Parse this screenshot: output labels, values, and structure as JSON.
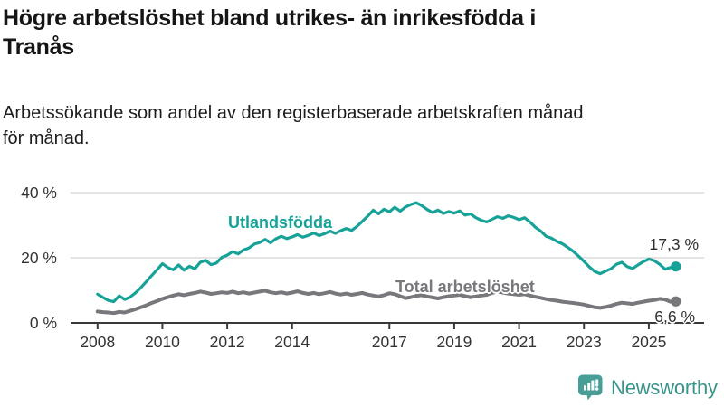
{
  "header": {
    "title_line1": "Högre arbetslöshet bland utrikes- än inrikesfödda i",
    "title_line2": "Tranås",
    "subtitle_line1": "Arbetssökande som andel av den registerbaserade arbetskraften månad",
    "subtitle_line2": "för månad."
  },
  "chart_data": {
    "type": "line",
    "title": "Högre arbetslöshet bland utrikes- än inrikesfödda i Tranås",
    "subtitle": "Arbetssökande som andel av den registerbaserade arbetskraften månad för månad.",
    "unit": "%",
    "grid": "horizontal",
    "legend_position": "inline-labels",
    "x0": 2008.0,
    "dx_years": 0.166667,
    "xlim": [
      2007.2,
      2026.7
    ],
    "ylim": [
      0,
      44
    ],
    "x_ticks": [
      {
        "value": 2008,
        "label": "2008"
      },
      {
        "value": 2010,
        "label": "2010"
      },
      {
        "value": 2012,
        "label": "2012"
      },
      {
        "value": 2014,
        "label": "2014"
      },
      {
        "value": 2017,
        "label": "2017"
      },
      {
        "value": 2019,
        "label": "2019"
      },
      {
        "value": 2021,
        "label": "2021"
      },
      {
        "value": 2023,
        "label": "2023"
      },
      {
        "value": 2025,
        "label": "2025"
      }
    ],
    "y_ticks": [
      {
        "value": 40,
        "label": "40 %"
      },
      {
        "value": 20,
        "label": "20 %"
      },
      {
        "value": 0,
        "label": "0 %"
      }
    ],
    "series": [
      {
        "name": "Utlandsfödda",
        "color": "#17A298",
        "end_value": 17.3,
        "end_label": "17,3 %",
        "values": [
          8.8,
          7.8,
          6.9,
          6.5,
          8.3,
          7.2,
          7.9,
          9.2,
          10.8,
          12.6,
          14.5,
          16.3,
          18.2,
          17.0,
          16.3,
          17.8,
          16.2,
          17.4,
          16.6,
          18.6,
          19.2,
          17.9,
          18.4,
          20.1,
          20.8,
          21.9,
          21.2,
          22.4,
          23.0,
          24.2,
          24.7,
          25.6,
          24.6,
          25.8,
          26.6,
          25.9,
          26.4,
          27.1,
          26.3,
          26.9,
          27.6,
          26.8,
          27.4,
          28.2,
          27.5,
          28.3,
          29.0,
          28.4,
          29.6,
          31.2,
          32.8,
          34.6,
          33.5,
          34.9,
          34.1,
          35.5,
          34.3,
          35.6,
          36.4,
          36.9,
          36.0,
          34.8,
          33.9,
          34.6,
          33.6,
          34.2,
          33.7,
          34.4,
          33.1,
          33.5,
          32.3,
          31.5,
          31.0,
          31.8,
          32.6,
          32.1,
          32.9,
          32.4,
          31.7,
          32.3,
          31.0,
          29.4,
          28.2,
          26.6,
          26.0,
          25.0,
          24.3,
          23.2,
          22.0,
          20.5,
          18.9,
          17.2,
          15.8,
          15.1,
          15.9,
          16.6,
          18.0,
          18.6,
          17.3,
          16.7,
          17.8,
          18.8,
          19.6,
          19.1,
          18.0,
          16.5,
          17.0,
          17.3
        ]
      },
      {
        "name": "Total arbetslöshet",
        "color": "#77777C",
        "end_value": 6.6,
        "end_label": "6,6 %",
        "values": [
          3.5,
          3.3,
          3.2,
          3.0,
          3.4,
          3.2,
          3.7,
          4.2,
          4.8,
          5.4,
          6.1,
          6.7,
          7.4,
          7.9,
          8.4,
          8.8,
          8.5,
          8.9,
          9.2,
          9.6,
          9.3,
          8.9,
          9.1,
          9.4,
          9.2,
          9.6,
          9.1,
          9.4,
          9.0,
          9.3,
          9.6,
          9.9,
          9.4,
          9.1,
          9.4,
          9.0,
          9.3,
          9.7,
          9.2,
          8.9,
          9.2,
          8.8,
          9.1,
          9.5,
          9.0,
          8.7,
          9.0,
          8.6,
          8.9,
          9.2,
          8.7,
          8.4,
          8.1,
          8.5,
          9.1,
          8.8,
          8.2,
          7.6,
          7.9,
          8.3,
          8.5,
          8.1,
          7.8,
          7.5,
          7.9,
          8.2,
          8.4,
          8.6,
          8.2,
          7.9,
          8.1,
          8.4,
          8.6,
          9.2,
          9.6,
          9.3,
          9.0,
          8.8,
          8.6,
          8.8,
          8.4,
          8.0,
          7.7,
          7.3,
          7.0,
          6.8,
          6.5,
          6.3,
          6.1,
          5.9,
          5.6,
          5.2,
          4.8,
          4.6,
          4.9,
          5.3,
          5.8,
          6.2,
          6.0,
          5.8,
          6.2,
          6.5,
          6.8,
          7.0,
          7.4,
          7.2,
          6.5,
          6.6
        ]
      }
    ]
  },
  "branding": {
    "name": "Newsworthy",
    "icon": "newsworthy-chart-speech-bubble",
    "accent_color": "#469E97",
    "text_color": "#3B948C"
  }
}
